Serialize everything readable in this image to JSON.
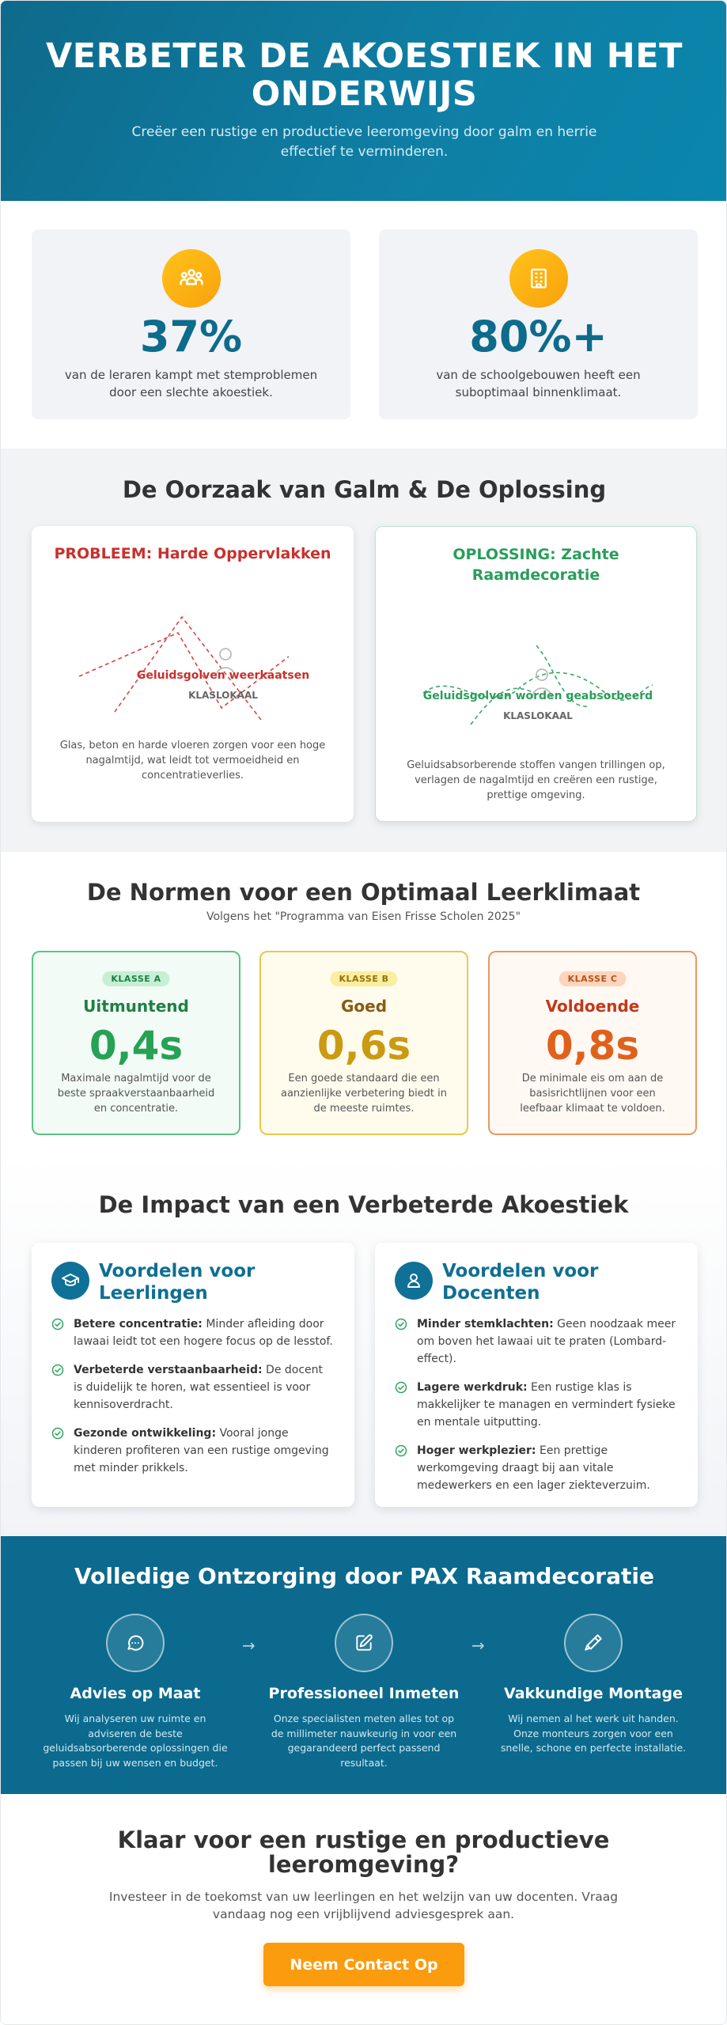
{
  "hero": {
    "title": "VERBETER DE AKOESTIEK IN HET ONDERWIJS",
    "subtitle": "Creëer een rustige en productieve leeromgeving door galm en herrie effectief te verminderen."
  },
  "stats": [
    {
      "icon": "people-group-icon",
      "value": "37%",
      "text": "van de leraren kampt met stemproblemen door een slechte akoestiek."
    },
    {
      "icon": "building-icon",
      "value": "80%+",
      "text": "van de schoolgebouwen heeft een suboptimaal binnenklimaat."
    }
  ],
  "cause": {
    "title": "De Oorzaak van Galm & De Oplossing",
    "problem": {
      "title": "PROBLEEM: Harde Oppervlakken",
      "wave_label": "Geluidsgolven weerkaatsen",
      "room_label": "KLASLOKAAL",
      "description": "Glas, beton en harde vloeren zorgen voor een hoge nagalmtijd, wat leidt tot vermoeidheid en concentratieverlies."
    },
    "solution": {
      "title": "OPLOSSING: Zachte Raamdecoratie",
      "wave_label": "Geluidsgolven worden geabsorbeerd",
      "room_label": "KLASLOKAAL",
      "description": "Geluidsabsorberende stoffen vangen trillingen op, verlagen de nagalmtijd en creëren een rustige, prettige omgeving."
    }
  },
  "norms": {
    "title": "De Normen voor een Optimaal Leerklimaat",
    "subtitle": "Volgens het \"Programma van Eisen Frisse Scholen 2025\"",
    "items": [
      {
        "badge": "KLASSE A",
        "label": "Uitmuntend",
        "value": "0,4s",
        "description": "Maximale nagalmtijd voor de beste spraakverstaanbaarheid en concentratie."
      },
      {
        "badge": "KLASSE B",
        "label": "Goed",
        "value": "0,6s",
        "description": "Een goede standaard die een aanzienlijke verbetering biedt in de meeste ruimtes."
      },
      {
        "badge": "KLASSE C",
        "label": "Voldoende",
        "value": "0,8s",
        "description": "De minimale eis om aan de basisrichtlijnen voor een leefbaar klimaat te voldoen."
      }
    ]
  },
  "impact": {
    "title": "De Impact van een Verbeterde Akoestiek",
    "students": {
      "title": "Voordelen voor Leerlingen",
      "items": [
        {
          "bold": "Betere concentratie:",
          "text": " Minder afleiding door lawaai leidt tot een hogere focus op de lesstof."
        },
        {
          "bold": "Verbeterde verstaanbaarheid:",
          "text": " De docent is duidelijk te horen, wat essentieel is voor kennisoverdracht."
        },
        {
          "bold": "Gezonde ontwikkeling:",
          "text": " Vooral jonge kinderen profiteren van een rustige omgeving met minder prikkels."
        }
      ]
    },
    "teachers": {
      "title": "Voordelen voor Docenten",
      "items": [
        {
          "bold": "Minder stemklachten:",
          "text": " Geen noodzaak meer om boven het lawaai uit te praten (Lombard-effect)."
        },
        {
          "bold": "Lagere werkdruk:",
          "text": " Een rustige klas is makkelijker te managen en vermindert fysieke en mentale uitputting."
        },
        {
          "bold": "Hoger werkplezier:",
          "text": " Een prettige werkomgeving draagt bij aan vitale medewerkers en een lager ziekteverzuim."
        }
      ]
    }
  },
  "service": {
    "title": "Volledige Ontzorging door PAX Raamdecoratie",
    "steps": [
      {
        "icon": "chat-bubble-icon",
        "title": "Advies op Maat",
        "description": "Wij analyseren uw ruimte en adviseren de beste geluidsabsorberende oplossingen die passen bij uw wensen en budget."
      },
      {
        "icon": "edit-pencil-icon",
        "title": "Professioneel Inmeten",
        "description": "Onze specialisten meten alles tot op de millimeter nauwkeurig in voor een gegarandeerd perfect passend resultaat."
      },
      {
        "icon": "hammer-icon",
        "title": "Vakkundige Montage",
        "description": "Wij nemen al het werk uit handen. Onze monteurs zorgen voor een snelle, schone en perfecte installatie."
      }
    ]
  },
  "cta": {
    "title": "Klaar voor een rustige en productieve leeromgeving?",
    "text": "Investeer in de toekomst van uw leerlingen en het welzijn van uw docenten. Vraag vandaag nog een vrijblijvend adviesgesprek aan.",
    "button": "Neem Contact Op"
  },
  "colors": {
    "primary": "#0f6f92",
    "accent": "#fb9c0e",
    "problem": "#c9302c",
    "solution": "#2a9d5a",
    "class_a": "#27a155",
    "class_b": "#c99a12",
    "class_c": "#e0611c"
  }
}
